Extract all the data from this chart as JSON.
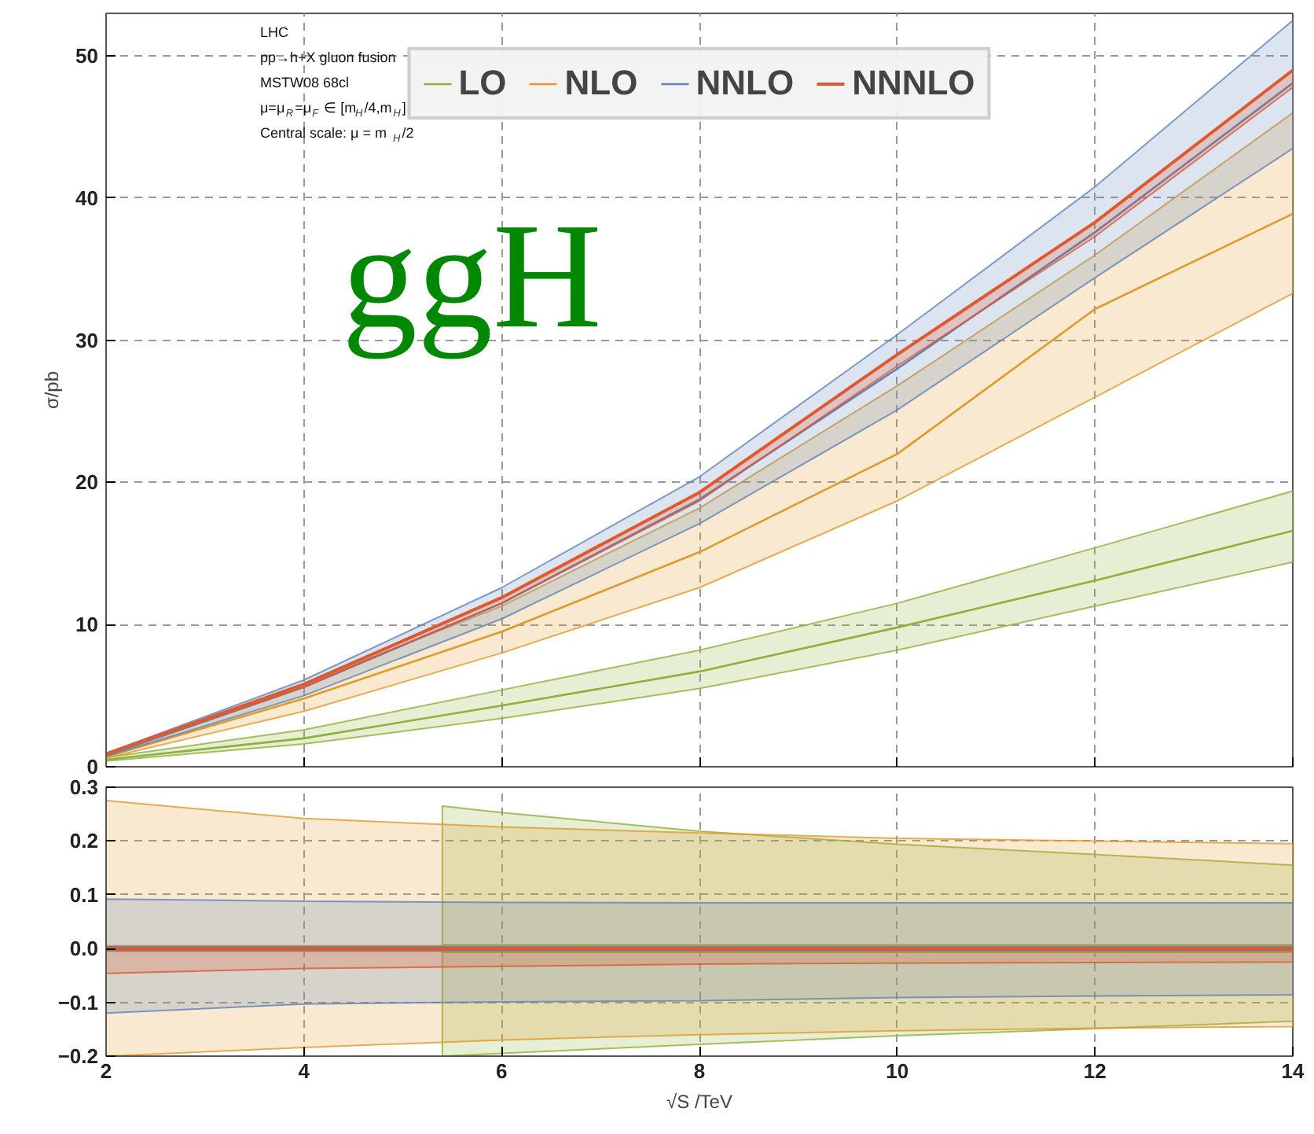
{
  "chart_data": [
    {
      "type": "line",
      "x": [
        2,
        4,
        6,
        8,
        10,
        12,
        14
      ],
      "ylabel": "σ/pb",
      "xlim": [
        2,
        14
      ],
      "ylim": [
        0,
        53
      ],
      "xticks": [
        2,
        4,
        6,
        8,
        10,
        12,
        14
      ],
      "yticks": [
        0,
        10,
        20,
        30,
        40,
        50
      ],
      "grid": true,
      "legend": "top",
      "tick_labels": "y",
      "annotations": [
        "LHC",
        "pp→h+X gluon fusion",
        "MSTW08 68cl",
        "μ=μ$_{R}$=μ$_{F}$ ∈ [m$_{H}$/4,m$_{H}$]",
        "Central scale: μ = m$_{H}$/2",
        "ggH"
      ],
      "series": [
        {
          "name": "LO",
          "color": "#8fb03a",
          "values": [
            0.5,
            2.0,
            4.3,
            6.7,
            9.8,
            13.1,
            16.6
          ],
          "lower": [
            0.4,
            1.6,
            3.4,
            5.5,
            8.2,
            11.3,
            14.4
          ],
          "upper": [
            0.65,
            2.6,
            5.4,
            8.2,
            11.5,
            15.4,
            19.4
          ]
        },
        {
          "name": "NLO",
          "color": "#e09a2a",
          "values": [
            0.7,
            4.8,
            9.5,
            15.1,
            22.0,
            32.2,
            38.9
          ],
          "lower": [
            0.62,
            3.9,
            8.0,
            12.6,
            18.7,
            26.0,
            33.3
          ],
          "upper": [
            0.9,
            5.8,
            11.3,
            18.2,
            26.8,
            36.0,
            46.0
          ]
        },
        {
          "name": "NNLO",
          "color": "#5f82b8",
          "values": [
            0.8,
            5.6,
            11.5,
            18.8,
            28.0,
            37.6,
            48.1
          ],
          "lower": [
            0.75,
            5.0,
            10.4,
            17.1,
            25.1,
            34.4,
            43.5
          ],
          "upper": [
            0.95,
            6.1,
            12.6,
            20.4,
            30.4,
            40.8,
            52.5
          ]
        },
        {
          "name": "NNNLO",
          "color": "#e0582e",
          "values": [
            0.9,
            5.8,
            11.9,
            19.3,
            29.0,
            38.3,
            49.0
          ],
          "lower": [
            0.86,
            5.6,
            11.5,
            18.7,
            28.2,
            37.3,
            47.8
          ],
          "upper": [
            0.9,
            5.8,
            11.9,
            19.3,
            29.0,
            38.3,
            49.0
          ]
        }
      ]
    },
    {
      "type": "line",
      "x": [
        2,
        4,
        6,
        8,
        10,
        12,
        14
      ],
      "xlabel": "√S /TeV",
      "xlim": [
        2,
        14
      ],
      "ylim": [
        -0.2,
        0.3
      ],
      "xticks": [
        2,
        4,
        6,
        8,
        10,
        12,
        14
      ],
      "yticks": [
        {
          "value": -0.2,
          "label": "−0.2"
        },
        {
          "value": -0.1,
          "label": "−0.1"
        },
        {
          "value": 0,
          "label": "0.0"
        },
        {
          "value": 0.1,
          "label": "0.1"
        },
        {
          "value": 0.2,
          "label": "0.2"
        },
        {
          "value": 0.3,
          "label": "0.3"
        }
      ],
      "grid": true,
      "series": [
        {
          "color": "#8fb03a",
          "x": [
            5.4,
            6,
            8,
            10,
            12,
            14
          ],
          "values": [
            0,
            0,
            0,
            0,
            0,
            0
          ],
          "lower": [
            -0.2,
            -0.195,
            -0.178,
            -0.162,
            -0.149,
            -0.135
          ],
          "upper": [
            0.265,
            0.253,
            0.218,
            0.194,
            0.175,
            0.155
          ]
        },
        {
          "color": "#e09a2a",
          "values": [
            0,
            0,
            0,
            0,
            0,
            0,
            0
          ],
          "lower": [
            -0.2,
            -0.184,
            -0.17,
            -0.16,
            -0.153,
            -0.148,
            -0.145
          ],
          "upper": [
            0.275,
            0.242,
            0.226,
            0.215,
            0.205,
            0.2,
            0.195
          ]
        },
        {
          "color": "#5f82b8",
          "values": [
            0,
            0,
            0,
            0,
            0,
            0,
            0
          ],
          "lower": [
            -0.12,
            -0.103,
            -0.099,
            -0.097,
            -0.091,
            -0.088,
            -0.086
          ],
          "upper": [
            0.092,
            0.088,
            0.086,
            0.085,
            0.085,
            0.085,
            0.085
          ]
        },
        {
          "color": "#e0582e",
          "values": [
            0,
            0,
            0,
            0,
            0,
            0,
            0
          ],
          "lower": [
            -0.046,
            -0.037,
            -0.033,
            -0.029,
            -0.027,
            -0.026,
            -0.025
          ],
          "upper": [
            0,
            0,
            0,
            0,
            0,
            0,
            0
          ]
        }
      ]
    }
  ]
}
